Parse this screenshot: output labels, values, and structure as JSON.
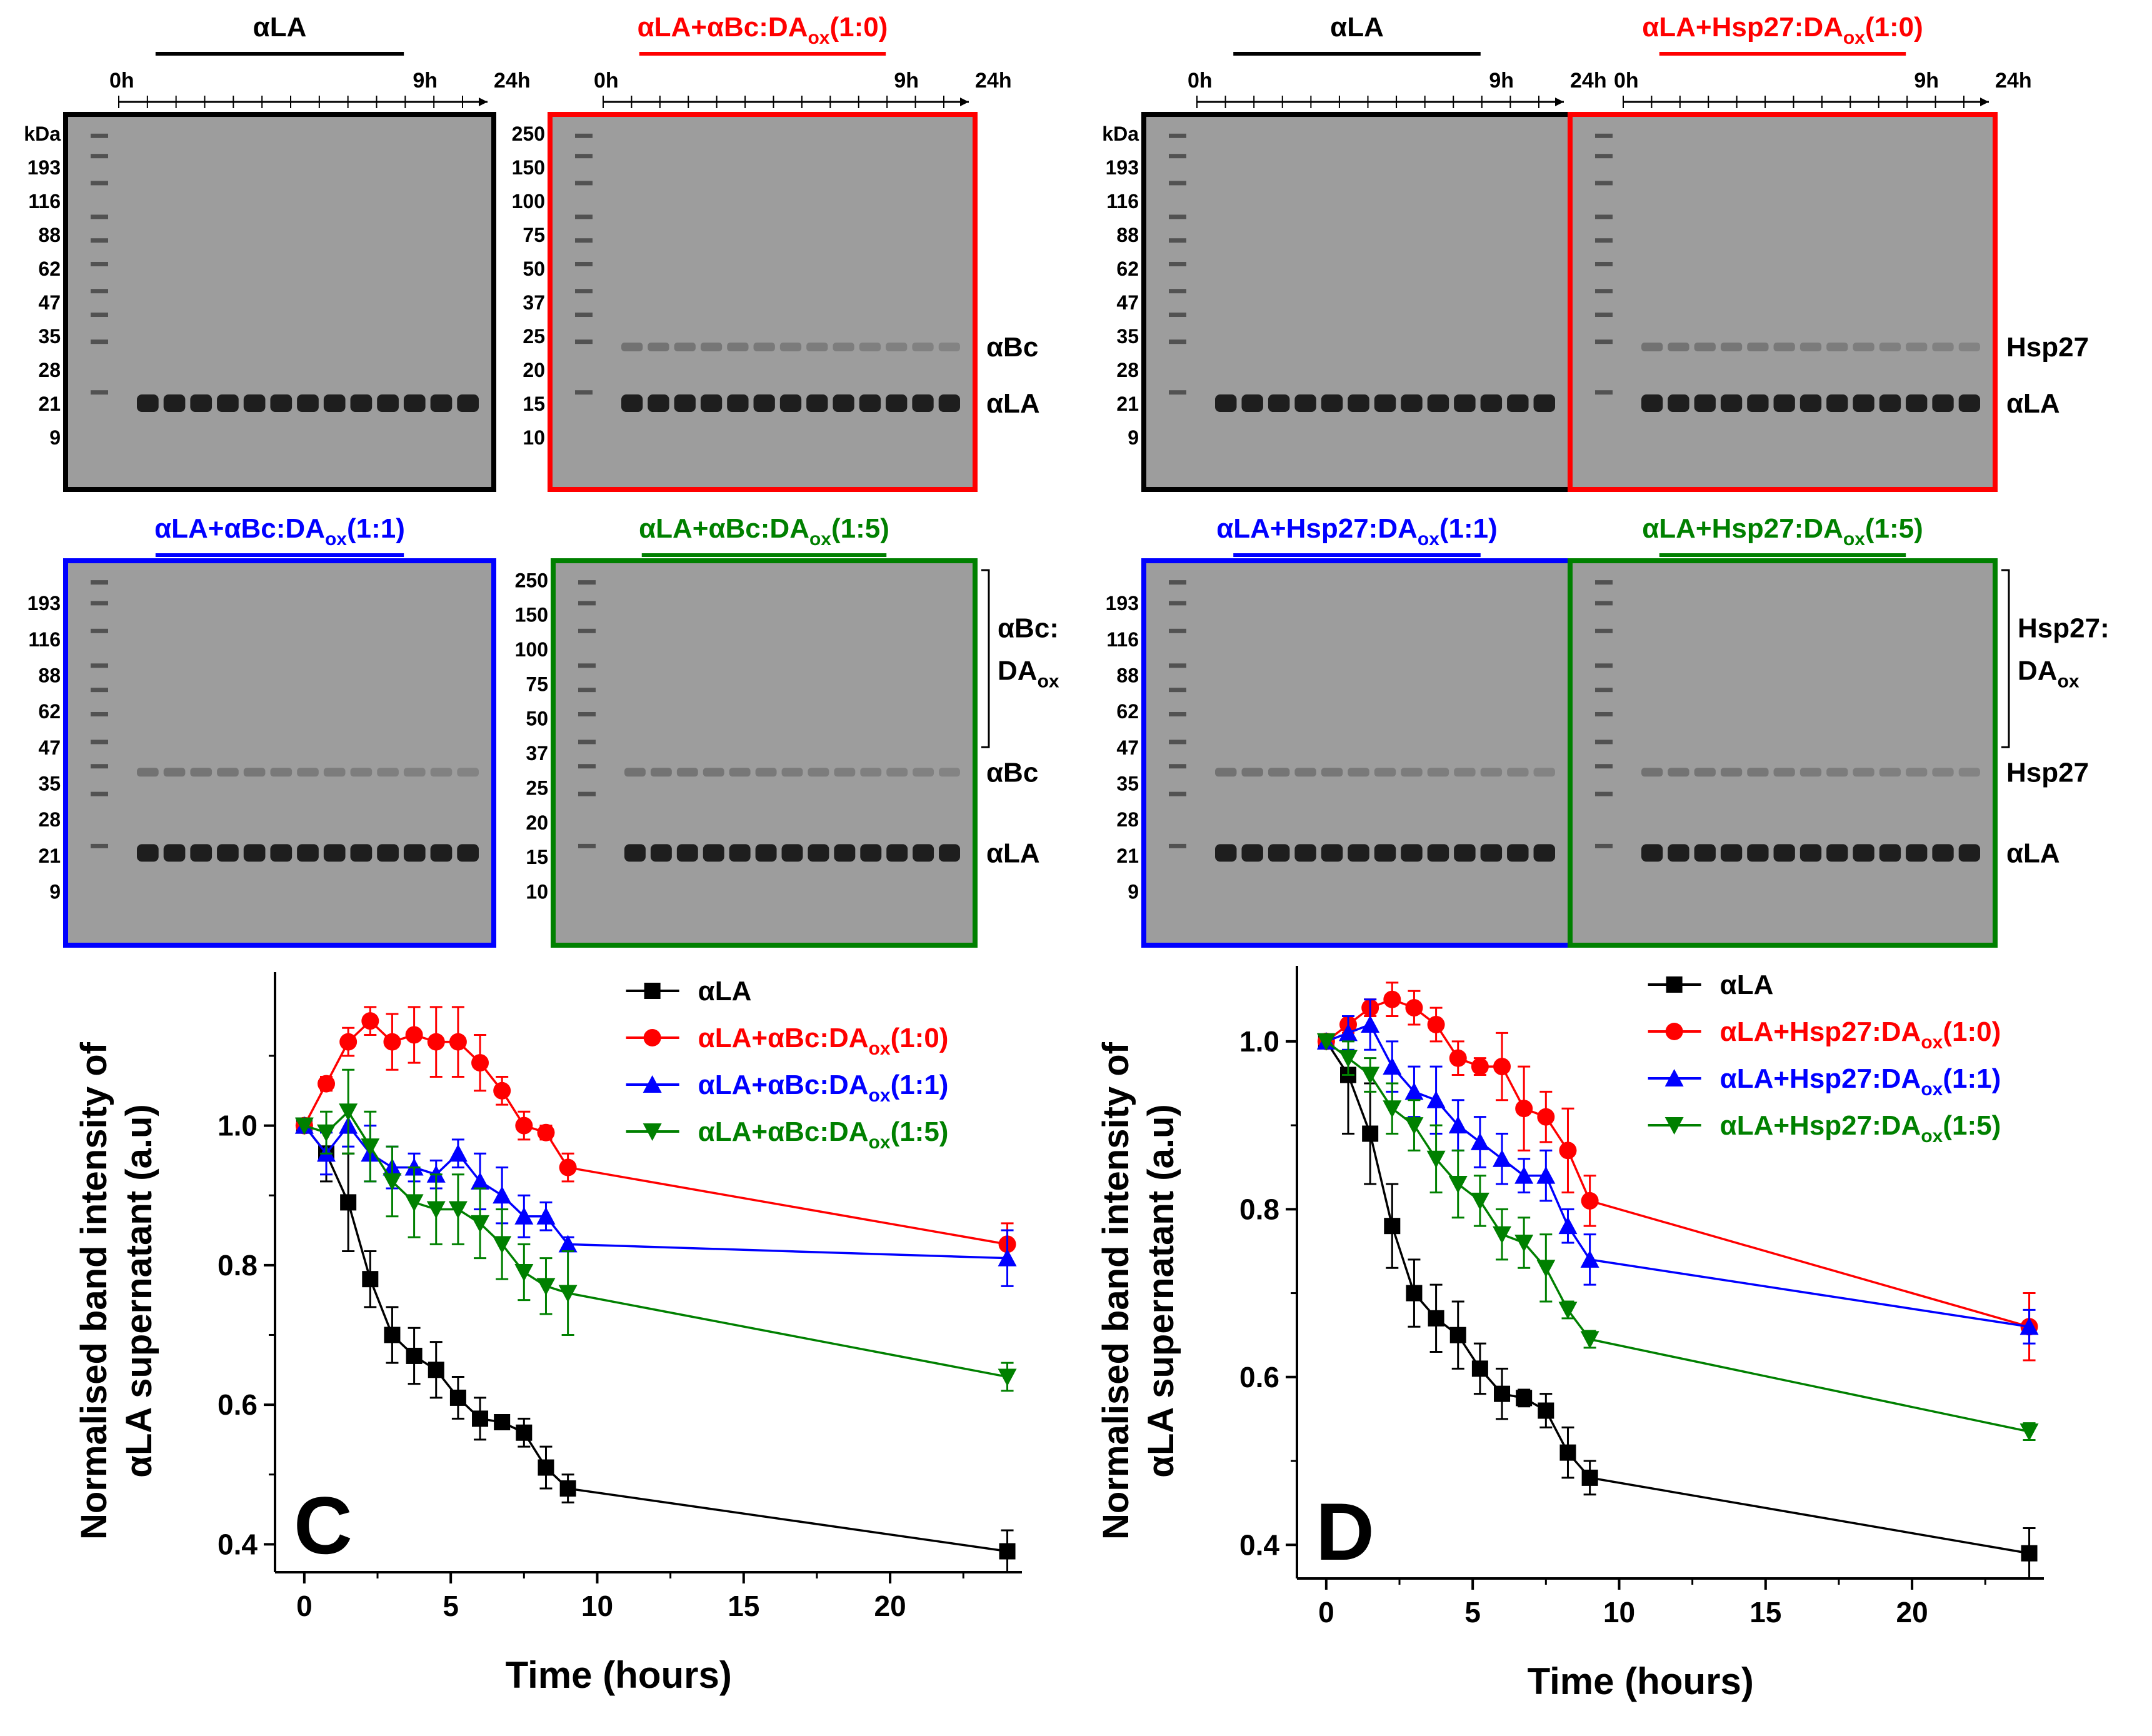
{
  "colors": {
    "black": "#000000",
    "red": "#ff0000",
    "blue": "#0000ff",
    "green": "#008000",
    "gel_bg": "#9d9d9d",
    "gel_band": "#1e1e1e"
  },
  "gels": [
    {
      "title": "αLA",
      "title_color": "black",
      "time_start": "0h",
      "time_mid": "9h",
      "time_end": "24h",
      "border": "black",
      "marker_labels": [
        "kDa",
        "193",
        "116",
        "88",
        "62",
        "47",
        "35",
        "28",
        "21",
        "9"
      ],
      "band_labels": [],
      "bracket_label": []
    },
    {
      "title": "αLA+αBc:DA",
      "title_sub": "ox",
      "title_tail": "(1:0)",
      "title_color": "red",
      "time_start": "0h",
      "time_mid": "9h",
      "time_end": "24h",
      "border": "red",
      "marker_labels": [
        "250",
        "150",
        "100",
        "75",
        "50",
        "37",
        "25",
        "20",
        "15",
        "10"
      ],
      "band_labels": [
        "αBc",
        "αLA"
      ],
      "bracket_label": []
    },
    {
      "title": "αLA+αBc:DA",
      "title_sub": "ox",
      "title_tail": "(1:1)",
      "title_color": "blue",
      "border": "blue",
      "marker_labels": [
        "193",
        "116",
        "88",
        "62",
        "47",
        "35",
        "28",
        "21",
        "9"
      ],
      "band_labels": [],
      "bracket_label": []
    },
    {
      "title": "αLA+αBc:DA",
      "title_sub": "ox",
      "title_tail": "(1:5)",
      "title_color": "green",
      "border": "green",
      "marker_labels": [
        "250",
        "150",
        "100",
        "75",
        "50",
        "37",
        "25",
        "20",
        "15",
        "10"
      ],
      "band_labels": [
        "αBc",
        "αLA"
      ],
      "bracket_label": [
        "αBc:",
        "DA",
        "ox"
      ]
    },
    {
      "title": "αLA",
      "title_color": "black",
      "time_start": "0h",
      "time_mid": "9h",
      "time_end": "24h",
      "border": "black",
      "marker_labels": [
        "kDa",
        "193",
        "116",
        "88",
        "62",
        "47",
        "35",
        "28",
        "21",
        "9"
      ],
      "band_labels": [],
      "bracket_label": []
    },
    {
      "title": "αLA+Hsp27:DA",
      "title_sub": "ox",
      "title_tail": "(1:0)",
      "title_color": "red",
      "time_start": "0h",
      "time_mid": "9h",
      "time_end": "24h",
      "border": "red",
      "marker_labels": [],
      "band_labels": [
        "Hsp27",
        "αLA"
      ],
      "bracket_label": []
    },
    {
      "title": "αLA+Hsp27:DA",
      "title_sub": "ox",
      "title_tail": "(1:1)",
      "title_color": "blue",
      "border": "blue",
      "marker_labels": [
        "193",
        "116",
        "88",
        "62",
        "47",
        "35",
        "28",
        "21",
        "9"
      ],
      "band_labels": [],
      "bracket_label": []
    },
    {
      "title": "αLA+Hsp27:DA",
      "title_sub": "ox",
      "title_tail": "(1:5)",
      "title_color": "green",
      "border": "green",
      "marker_labels": [],
      "band_labels": [
        "Hsp27",
        "αLA"
      ],
      "bracket_label": [
        "Hsp27:",
        "DA",
        "ox"
      ]
    }
  ],
  "chart_data": [
    {
      "type": "line",
      "panel_letter": "C",
      "title": "",
      "xlabel": "Time (hours)",
      "ylabel_line1": "Normalised band intensity of",
      "ylabel_line2": "αLA supernatant (a.u)",
      "xlim": [
        -1,
        24.5
      ],
      "ylim": [
        0.36,
        1.22
      ],
      "xticks": [
        0,
        5,
        10,
        15,
        20
      ],
      "yticks": [
        0.4,
        0.6,
        0.8,
        1.0
      ],
      "ytick_labels": [
        "0.4",
        "0.6",
        "0.8",
        "1.0"
      ],
      "legend_position": "top-right",
      "series": [
        {
          "name": "αLA",
          "name_sub": "",
          "name_tail": "",
          "color": "black",
          "marker": "square",
          "x": [
            0,
            0.75,
            1.5,
            2.25,
            3,
            3.75,
            4.5,
            5.25,
            6,
            6.75,
            7.5,
            8.25,
            9,
            24
          ],
          "y": [
            1.0,
            0.96,
            0.89,
            0.78,
            0.7,
            0.67,
            0.65,
            0.61,
            0.58,
            0.575,
            0.56,
            0.51,
            0.48,
            0.39
          ],
          "err": [
            0,
            0.04,
            0.07,
            0.04,
            0.04,
            0.04,
            0.04,
            0.03,
            0.03,
            0.01,
            0.02,
            0.03,
            0.02,
            0.03
          ]
        },
        {
          "name": "αLA+αBc:DA",
          "name_sub": "ox",
          "name_tail": "(1:0)",
          "color": "red",
          "marker": "circle",
          "x": [
            0,
            0.75,
            1.5,
            2.25,
            3,
            3.75,
            4.5,
            5.25,
            6,
            6.75,
            7.5,
            8.25,
            9,
            24
          ],
          "y": [
            1.0,
            1.06,
            1.12,
            1.15,
            1.12,
            1.13,
            1.12,
            1.12,
            1.09,
            1.05,
            1.0,
            0.99,
            0.94,
            0.83
          ],
          "err": [
            0,
            0.01,
            0.02,
            0.02,
            0.04,
            0.04,
            0.05,
            0.05,
            0.04,
            0.02,
            0.02,
            0.01,
            0.02,
            0.03
          ]
        },
        {
          "name": "αLA+αBc:DA",
          "name_sub": "ox",
          "name_tail": "(1:1)",
          "color": "blue",
          "marker": "triangle-up",
          "x": [
            0,
            0.75,
            1.5,
            2.25,
            3,
            3.75,
            4.5,
            5.25,
            6,
            6.75,
            7.5,
            8.25,
            9,
            24
          ],
          "y": [
            1.0,
            0.96,
            1.0,
            0.96,
            0.94,
            0.94,
            0.93,
            0.96,
            0.92,
            0.9,
            0.87,
            0.87,
            0.83,
            0.81
          ],
          "err": [
            0,
            0.03,
            0.03,
            0.04,
            0.03,
            0.02,
            0.02,
            0.02,
            0.04,
            0.04,
            0.03,
            0.02,
            0.01,
            0.04
          ]
        },
        {
          "name": "αLA+αBc:DA",
          "name_sub": "ox",
          "name_tail": "(1:5)",
          "color": "green",
          "marker": "triangle-down",
          "x": [
            0,
            0.75,
            1.5,
            2.25,
            3,
            3.75,
            4.5,
            5.25,
            6,
            6.75,
            7.5,
            8.25,
            9,
            24
          ],
          "y": [
            1.0,
            0.99,
            1.02,
            0.97,
            0.92,
            0.89,
            0.88,
            0.88,
            0.86,
            0.83,
            0.79,
            0.77,
            0.76,
            0.64
          ],
          "err": [
            0,
            0.03,
            0.06,
            0.05,
            0.05,
            0.05,
            0.05,
            0.05,
            0.05,
            0.05,
            0.04,
            0.04,
            0.06,
            0.02
          ]
        }
      ]
    },
    {
      "type": "line",
      "panel_letter": "D",
      "title": "",
      "xlabel": "Time (hours)",
      "ylabel_line1": "Normalised band intensity of",
      "ylabel_line2": "αLA supernatant (a.u)",
      "xlim": [
        -1,
        24.5
      ],
      "ylim": [
        0.36,
        1.09
      ],
      "xticks": [
        0,
        5,
        10,
        15,
        20
      ],
      "yticks": [
        0.4,
        0.6,
        0.8,
        1.0
      ],
      "ytick_labels": [
        "0.4",
        "0.6",
        "0.8",
        "1.0"
      ],
      "legend_position": "top-right",
      "series": [
        {
          "name": "αLA",
          "name_sub": "",
          "name_tail": "",
          "color": "black",
          "marker": "square",
          "x": [
            0,
            0.75,
            1.5,
            2.25,
            3,
            3.75,
            4.5,
            5.25,
            6,
            6.75,
            7.5,
            8.25,
            9,
            24
          ],
          "y": [
            1.0,
            0.96,
            0.89,
            0.78,
            0.7,
            0.67,
            0.65,
            0.61,
            0.58,
            0.575,
            0.56,
            0.51,
            0.48,
            0.39
          ],
          "err": [
            0,
            0.07,
            0.06,
            0.05,
            0.04,
            0.04,
            0.04,
            0.03,
            0.03,
            0.01,
            0.02,
            0.03,
            0.02,
            0.03
          ]
        },
        {
          "name": "αLA+Hsp27:DA",
          "name_sub": "ox",
          "name_tail": "(1:0)",
          "color": "red",
          "marker": "circle",
          "x": [
            0,
            0.75,
            1.5,
            2.25,
            3,
            3.75,
            4.5,
            5.25,
            6,
            6.75,
            7.5,
            8.25,
            9,
            24
          ],
          "y": [
            1.0,
            1.02,
            1.04,
            1.05,
            1.04,
            1.02,
            0.98,
            0.97,
            0.97,
            0.92,
            0.91,
            0.87,
            0.81,
            0.66
          ],
          "err": [
            0,
            0.01,
            0.01,
            0.02,
            0.02,
            0.02,
            0.02,
            0.01,
            0.04,
            0.05,
            0.03,
            0.05,
            0.03,
            0.04
          ]
        },
        {
          "name": "αLA+Hsp27:DA",
          "name_sub": "ox",
          "name_tail": "(1:1)",
          "color": "blue",
          "marker": "triangle-up",
          "x": [
            0,
            0.75,
            1.5,
            2.25,
            3,
            3.75,
            4.5,
            5.25,
            6,
            6.75,
            7.5,
            8.25,
            9,
            24
          ],
          "y": [
            1.0,
            1.01,
            1.02,
            0.97,
            0.94,
            0.93,
            0.9,
            0.88,
            0.86,
            0.84,
            0.84,
            0.78,
            0.74,
            0.66
          ],
          "err": [
            0,
            0.02,
            0.03,
            0.03,
            0.03,
            0.04,
            0.03,
            0.03,
            0.03,
            0.02,
            0.03,
            0.02,
            0.03,
            0.02
          ]
        },
        {
          "name": "αLA+Hsp27:DA",
          "name_sub": "ox",
          "name_tail": "(1:5)",
          "color": "green",
          "marker": "triangle-down",
          "x": [
            0,
            0.75,
            1.5,
            2.25,
            3,
            3.75,
            4.5,
            5.25,
            6,
            6.75,
            7.5,
            8.25,
            9,
            24
          ],
          "y": [
            1.0,
            0.98,
            0.96,
            0.92,
            0.9,
            0.86,
            0.83,
            0.81,
            0.77,
            0.76,
            0.73,
            0.68,
            0.645,
            0.535
          ],
          "err": [
            0,
            0.02,
            0.02,
            0.03,
            0.03,
            0.04,
            0.04,
            0.03,
            0.03,
            0.03,
            0.04,
            0.01,
            0.01,
            0.01
          ]
        }
      ]
    }
  ]
}
